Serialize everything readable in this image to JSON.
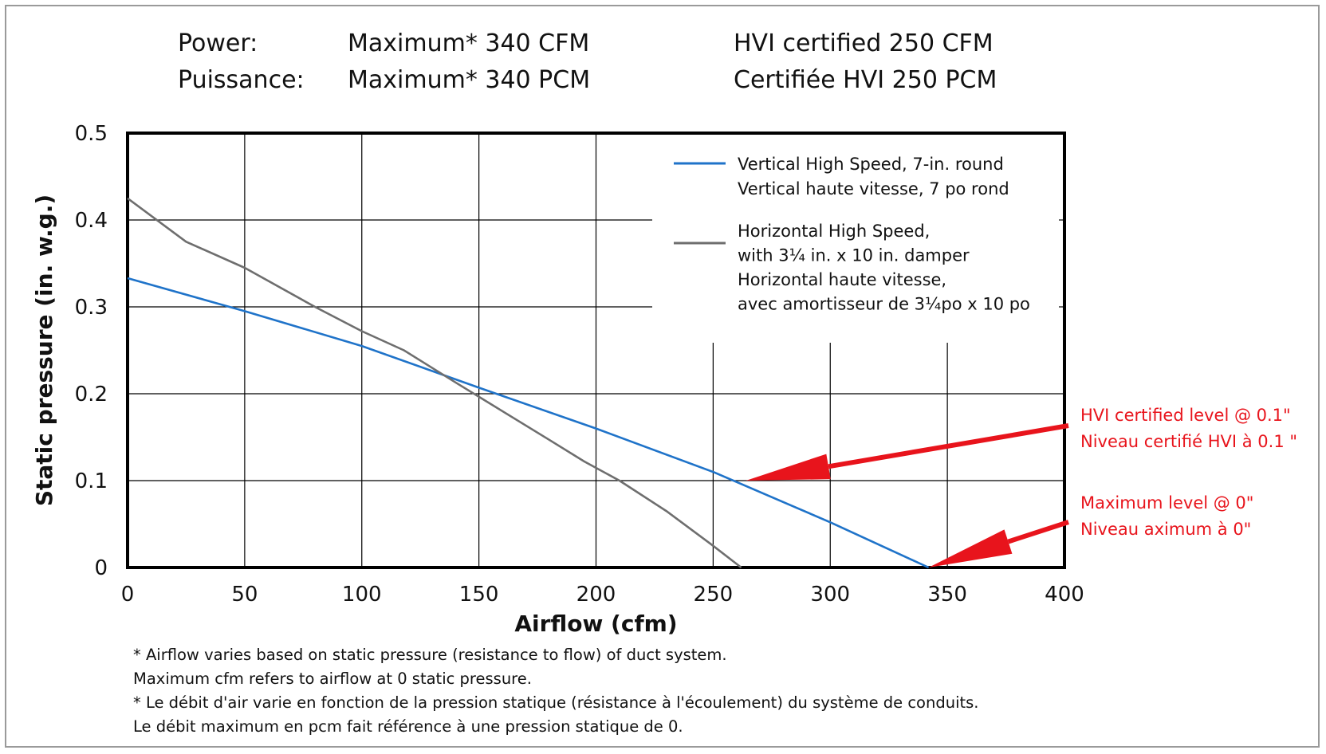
{
  "header": {
    "rows": [
      {
        "label": "Power:",
        "max": "Maximum* 340 CFM",
        "hvi": "HVI certified  250 CFM"
      },
      {
        "label": "Puissance:",
        "max": "Maximum* 340 PCM",
        "hvi": "Certifiée HVI 250 PCM"
      }
    ]
  },
  "chart_data": {
    "type": "line",
    "xlabel": "Airflow (cfm)",
    "ylabel": "Static pressure (in. w.g.)",
    "xlim": [
      0,
      400
    ],
    "ylim": [
      0,
      0.5
    ],
    "xticks": [
      "0",
      "50",
      "100",
      "150",
      "200",
      "250",
      "300",
      "350",
      "400"
    ],
    "yticks": [
      "0",
      "0.1",
      "0.2",
      "0.3",
      "0.4",
      "0.5"
    ],
    "grid": true,
    "legend_position": "top-right",
    "series": [
      {
        "name": [
          "Vertical High Speed, 7-in. round",
          "Vertical haute vitesse, 7 po rond"
        ],
        "color": "#1f73c9",
        "x": [
          0,
          50,
          100,
          150,
          200,
          250,
          300,
          342
        ],
        "y": [
          0.333,
          0.295,
          0.255,
          0.207,
          0.16,
          0.11,
          0.052,
          0.0
        ]
      },
      {
        "name": [
          "Horizontal High Speed,",
          "with 3¼ in. x 10 in. damper",
          "Horizontal  haute vitesse,",
          "avec amortisseur de 3¼po x 10 po"
        ],
        "color": "#6e6e6e",
        "x": [
          0,
          25,
          50,
          80,
          100,
          118,
          140,
          160,
          180,
          195,
          210,
          230,
          250,
          262
        ],
        "y": [
          0.425,
          0.375,
          0.345,
          0.3,
          0.272,
          0.25,
          0.213,
          0.18,
          0.147,
          0.122,
          0.1,
          0.065,
          0.025,
          0.0
        ]
      }
    ],
    "annotations": [
      {
        "lines": [
          "HVI certified level @ 0.1\"",
          "Niveau certifié HVI à 0.1 \""
        ],
        "color": "#e8141c",
        "target": {
          "x": 264,
          "y": 0.1
        }
      },
      {
        "lines": [
          "Maximum level @ 0\"",
          "Niveau aximum à 0\""
        ],
        "color": "#e8141c",
        "target": {
          "x": 342,
          "y": 0.0
        }
      }
    ]
  },
  "footnotes": [
    "* Airflow varies based on static pressure (resistance to flow) of duct system.",
    "Maximum cfm refers to airflow at 0 static pressure.",
    "* Le débit d'air varie en fonction de la pression statique (résistance à l'écoulement) du système de conduits.",
    "Le débit maximum en pcm fait référence à une pression statique de 0."
  ]
}
